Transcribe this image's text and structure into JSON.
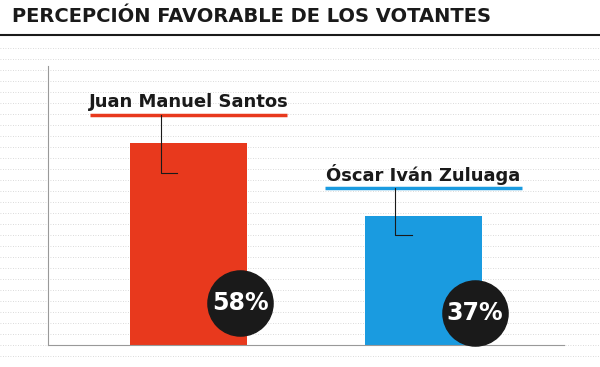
{
  "chart_data": {
    "type": "bar",
    "title": "PERCEPCIÓN FAVORABLE DE LOS VOTANTES",
    "categories": [
      "Juan Manuel Santos",
      "Óscar Iván Zuluaga"
    ],
    "values": [
      58,
      37
    ],
    "value_labels": [
      "58%",
      "37%"
    ],
    "colors": [
      "#e8391d",
      "#1a9be0"
    ],
    "ylim": [
      0,
      80
    ],
    "data_labels": true,
    "tick_labels": false
  }
}
